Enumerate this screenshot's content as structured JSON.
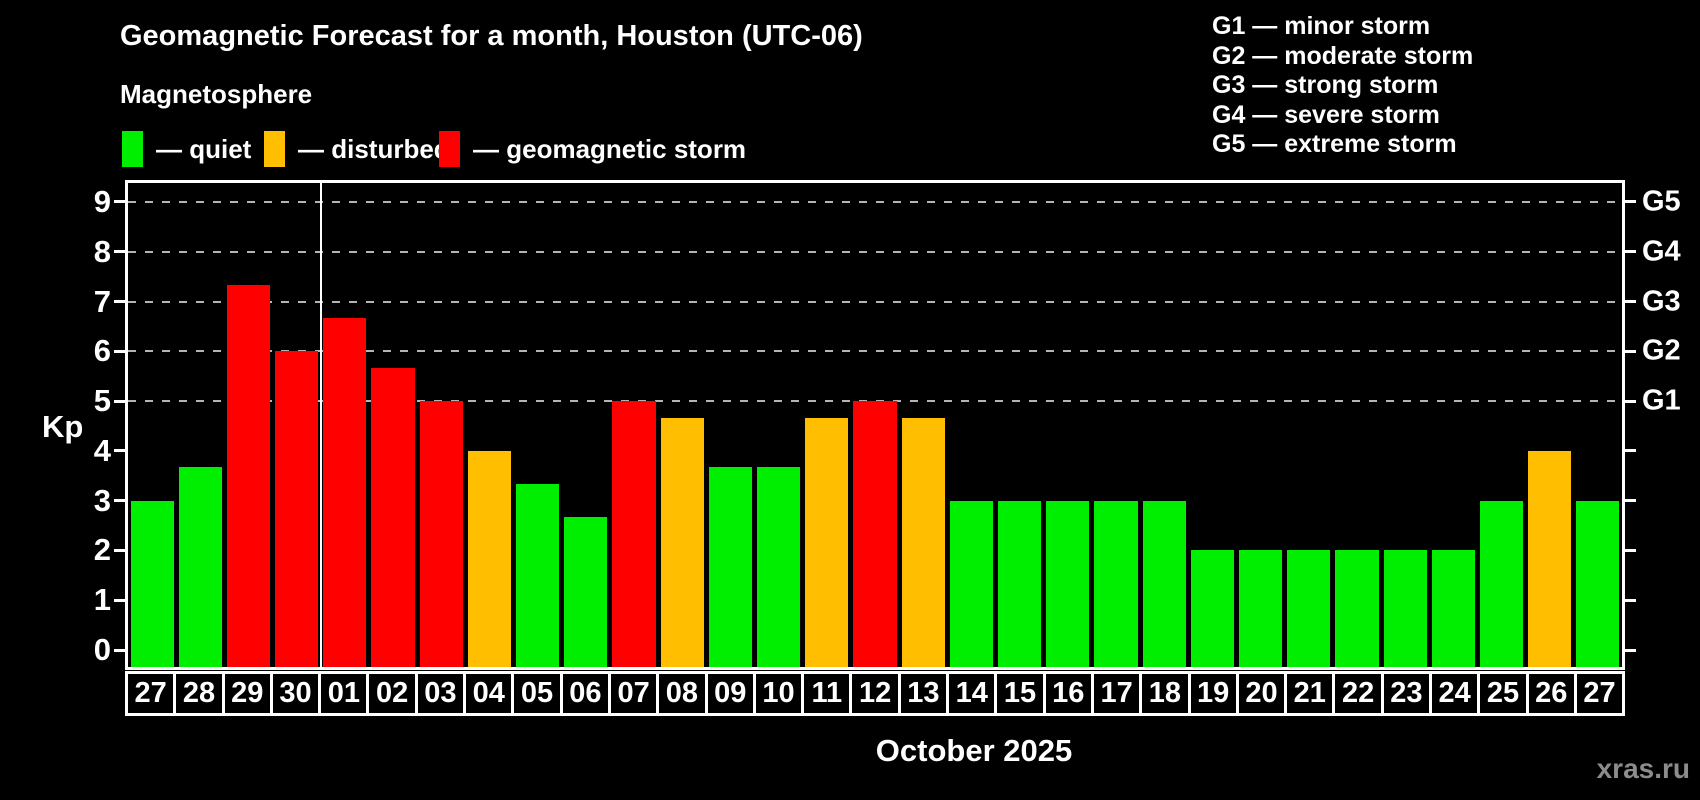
{
  "header": {
    "title": "Geomagnetic Forecast for a month, Houston (UTC-06)",
    "subtitle": "Magnetosphere"
  },
  "legend": [
    {
      "key": "quiet",
      "label": "— quiet",
      "color": "#00ee00"
    },
    {
      "key": "disturbed",
      "label": "— disturbed",
      "color": "#ffbf00"
    },
    {
      "key": "storm",
      "label": "— geomagnetic storm",
      "color": "#fe0000"
    }
  ],
  "g_scale_legend": [
    {
      "label": "G1 — minor storm"
    },
    {
      "label": "G2 — moderate storm"
    },
    {
      "label": "G3 — strong storm"
    },
    {
      "label": "G4 — severe storm"
    },
    {
      "label": "G5 — extreme storm"
    }
  ],
  "chart_data": {
    "type": "bar",
    "title": "Geomagnetic Forecast for a month, Houston (UTC-06)",
    "ylabel": "Kp",
    "xlabel": "October 2025",
    "ylim": [
      0,
      9
    ],
    "y_ticks": [
      0,
      1,
      2,
      3,
      4,
      5,
      6,
      7,
      8,
      9
    ],
    "gridlines_at": [
      5,
      6,
      7,
      8,
      9
    ],
    "grid_style": "dashed",
    "legend_position": "top",
    "right_axis": {
      "labels": [
        {
          "text": "G1",
          "kp": 5
        },
        {
          "text": "G2",
          "kp": 6
        },
        {
          "text": "G3",
          "kp": 7
        },
        {
          "text": "G4",
          "kp": 8
        },
        {
          "text": "G5",
          "kp": 9
        }
      ]
    },
    "month_separator_after_category_index": 3,
    "categories": [
      "27",
      "28",
      "29",
      "30",
      "01",
      "02",
      "03",
      "04",
      "05",
      "06",
      "07",
      "08",
      "09",
      "10",
      "11",
      "12",
      "13",
      "14",
      "15",
      "16",
      "17",
      "18",
      "19",
      "20",
      "21",
      "22",
      "23",
      "24",
      "25",
      "26",
      "27"
    ],
    "values": [
      3,
      3.67,
      7.33,
      6,
      6.67,
      5.67,
      5,
      4,
      3.33,
      2.67,
      5,
      4.67,
      3.67,
      3.67,
      4.67,
      5,
      4.67,
      3,
      3,
      3,
      3,
      3,
      2,
      2,
      2,
      2,
      2,
      2,
      3,
      4,
      3
    ],
    "statuses": [
      "quiet",
      "quiet",
      "storm",
      "storm",
      "storm",
      "storm",
      "storm",
      "disturbed",
      "quiet",
      "quiet",
      "storm",
      "disturbed",
      "quiet",
      "quiet",
      "disturbed",
      "storm",
      "disturbed",
      "quiet",
      "quiet",
      "quiet",
      "quiet",
      "quiet",
      "quiet",
      "quiet",
      "quiet",
      "quiet",
      "quiet",
      "quiet",
      "quiet",
      "disturbed",
      "quiet"
    ],
    "status_colors": {
      "quiet": "#00ee00",
      "disturbed": "#ffbf00",
      "storm": "#fe0000"
    }
  },
  "footer": {
    "month_label": "October 2025",
    "watermark": "xras.ru"
  }
}
